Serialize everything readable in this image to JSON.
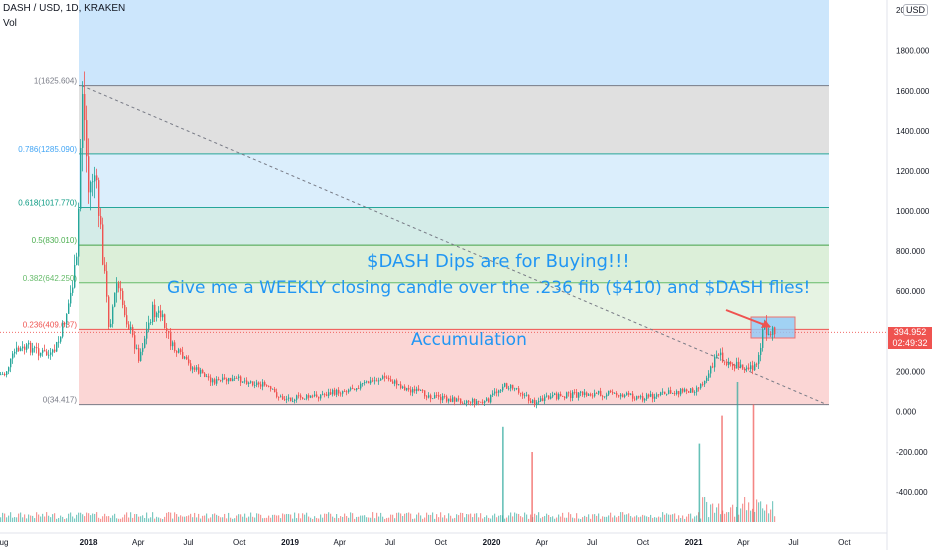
{
  "header": {
    "symbol_line": "DASH / USD, 1D, KRAKEN",
    "volume_label": "Vol",
    "currency_badge": "USD"
  },
  "price_scale": {
    "labels": [
      "1800.000",
      "1600.000",
      "1400.000",
      "1200.000",
      "1000.000",
      "800.000",
      "600.000",
      "200.000",
      "0.000",
      "-200.000",
      "-400.000"
    ],
    "top_label_partial": "20"
  },
  "time_axis": {
    "labels": [
      {
        "text": "ug",
        "date": "2017-08-01"
      },
      {
        "text": "2018",
        "date": "2018-01-01"
      },
      {
        "text": "Apr",
        "date": "2018-04-01"
      },
      {
        "text": "Jul",
        "date": "2018-07-01"
      },
      {
        "text": "Oct",
        "date": "2018-10-01"
      },
      {
        "text": "2019",
        "date": "2019-01-01"
      },
      {
        "text": "Apr",
        "date": "2019-04-01"
      },
      {
        "text": "Jul",
        "date": "2019-07-01"
      },
      {
        "text": "Oct",
        "date": "2019-10-01"
      },
      {
        "text": "2020",
        "date": "2020-01-01"
      },
      {
        "text": "Apr",
        "date": "2020-04-01"
      },
      {
        "text": "Jul",
        "date": "2020-07-01"
      },
      {
        "text": "Oct",
        "date": "2020-10-01"
      },
      {
        "text": "2021",
        "date": "2021-01-01"
      },
      {
        "text": "Apr",
        "date": "2021-04-01"
      },
      {
        "text": "Jul",
        "date": "2021-07-01"
      },
      {
        "text": "Oct",
        "date": "2021-10-01"
      }
    ]
  },
  "last_price": {
    "value": "394.952",
    "countdown": "02:49:32"
  },
  "fib_levels": [
    {
      "ratio": 1,
      "price": 1625.604,
      "label": "1(1625.604)",
      "line_color": "#787b86",
      "label_color": "#787b86",
      "fill": "#e0e0e0"
    },
    {
      "ratio": 0.786,
      "price": 1285.09,
      "label": "0.786(1285.090)",
      "line_color": "#26a69a",
      "label_color": "#42a5f5",
      "fill": "#dbeefc"
    },
    {
      "ratio": 0.618,
      "price": 1017.77,
      "label": "0.618(1017.770)",
      "line_color": "#26a69a",
      "label_color": "#089981",
      "fill": "#d4ece8"
    },
    {
      "ratio": 0.5,
      "price": 830.01,
      "label": "0.5(830.010)",
      "line_color": "#43a047",
      "label_color": "#4caf50",
      "fill": "#dcefd9"
    },
    {
      "ratio": 0.382,
      "price": 642.25,
      "label": "0.382(642.250)",
      "line_color": "#66bb6a",
      "label_color": "#66bb6a",
      "fill": "#e6f3e3"
    },
    {
      "ratio": 0.236,
      "price": 409.637,
      "label": "0.236(409.637)",
      "line_color": "#ef5350",
      "label_color": "#ef5350",
      "fill": "#fbd6d5"
    },
    {
      "ratio": 0,
      "price": 34.417,
      "label": "0(34.417)",
      "line_color": "#787b86",
      "label_color": "#787b86"
    }
  ],
  "annotations": {
    "line1": "$DASH Dips are for Buying!!!",
    "line2": "Give me a WEEKLY closing candle over the .236 fib ($410) and $DASH flies!",
    "accumulation": "Accumulation"
  },
  "colors": {
    "up": "#26a69a",
    "down": "#ef5350",
    "annotation": "#2196f3",
    "highlight_band": "#bbdefb",
    "target_box": "#7eb0e0"
  },
  "chart_data": {
    "type": "candlestick",
    "title": "DASH / USD, 1D, KRAKEN",
    "ylim": [
      -500,
      2000
    ],
    "price_path": [
      {
        "date": "2017-08-01",
        "price": 185
      },
      {
        "date": "2017-08-20",
        "price": 300
      },
      {
        "date": "2017-09-15",
        "price": 320
      },
      {
        "date": "2017-10-01",
        "price": 300
      },
      {
        "date": "2017-10-25",
        "price": 275
      },
      {
        "date": "2017-11-10",
        "price": 370
      },
      {
        "date": "2017-11-25",
        "price": 540
      },
      {
        "date": "2017-12-10",
        "price": 750
      },
      {
        "date": "2017-12-20",
        "price": 1625
      },
      {
        "date": "2017-12-31",
        "price": 1100
      },
      {
        "date": "2018-01-10",
        "price": 1200
      },
      {
        "date": "2018-01-20",
        "price": 950
      },
      {
        "date": "2018-02-06",
        "price": 420
      },
      {
        "date": "2018-02-20",
        "price": 640
      },
      {
        "date": "2018-03-10",
        "price": 460
      },
      {
        "date": "2018-04-01",
        "price": 270
      },
      {
        "date": "2018-04-25",
        "price": 500
      },
      {
        "date": "2018-05-10",
        "price": 480
      },
      {
        "date": "2018-06-01",
        "price": 320
      },
      {
        "date": "2018-07-01",
        "price": 230
      },
      {
        "date": "2018-08-15",
        "price": 150
      },
      {
        "date": "2018-10-01",
        "price": 160
      },
      {
        "date": "2018-11-15",
        "price": 130
      },
      {
        "date": "2018-12-15",
        "price": 65
      },
      {
        "date": "2019-02-01",
        "price": 70
      },
      {
        "date": "2019-04-01",
        "price": 100
      },
      {
        "date": "2019-06-20",
        "price": 170
      },
      {
        "date": "2019-08-01",
        "price": 110
      },
      {
        "date": "2019-10-01",
        "price": 65
      },
      {
        "date": "2019-12-20",
        "price": 45
      },
      {
        "date": "2020-01-20",
        "price": 130
      },
      {
        "date": "2020-02-15",
        "price": 115
      },
      {
        "date": "2020-03-13",
        "price": 45
      },
      {
        "date": "2020-05-01",
        "price": 80
      },
      {
        "date": "2020-08-01",
        "price": 90
      },
      {
        "date": "2020-10-01",
        "price": 70
      },
      {
        "date": "2020-12-01",
        "price": 100
      },
      {
        "date": "2021-01-01",
        "price": 110
      },
      {
        "date": "2021-01-20",
        "price": 150
      },
      {
        "date": "2021-02-15",
        "price": 300
      },
      {
        "date": "2021-03-01",
        "price": 230
      },
      {
        "date": "2021-04-01",
        "price": 230
      },
      {
        "date": "2021-04-25",
        "price": 220
      },
      {
        "date": "2021-05-08",
        "price": 440
      },
      {
        "date": "2021-05-12",
        "price": 390
      },
      {
        "date": "2021-05-14",
        "price": 395
      }
    ],
    "volume_spikes": [
      {
        "date": "2020-01-20",
        "value": 340
      },
      {
        "date": "2020-03-13",
        "value": 250
      },
      {
        "date": "2021-01-10",
        "value": 280
      },
      {
        "date": "2021-02-20",
        "value": 380
      },
      {
        "date": "2021-03-20",
        "value": 500
      },
      {
        "date": "2021-04-18",
        "value": 420
      }
    ]
  }
}
